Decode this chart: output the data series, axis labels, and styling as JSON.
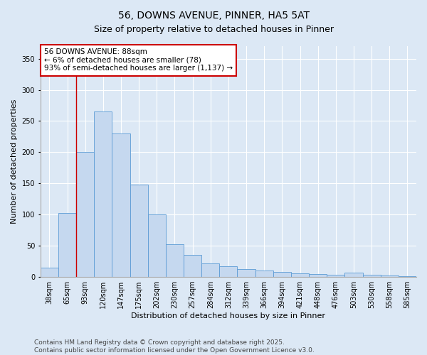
{
  "title": "56, DOWNS AVENUE, PINNER, HA5 5AT",
  "subtitle": "Size of property relative to detached houses in Pinner",
  "xlabel": "Distribution of detached houses by size in Pinner",
  "ylabel": "Number of detached properties",
  "categories": [
    "38sqm",
    "65sqm",
    "93sqm",
    "120sqm",
    "147sqm",
    "175sqm",
    "202sqm",
    "230sqm",
    "257sqm",
    "284sqm",
    "312sqm",
    "339sqm",
    "366sqm",
    "394sqm",
    "421sqm",
    "448sqm",
    "476sqm",
    "503sqm",
    "530sqm",
    "558sqm",
    "585sqm"
  ],
  "values": [
    15,
    102,
    200,
    265,
    230,
    148,
    100,
    52,
    35,
    22,
    17,
    13,
    10,
    8,
    6,
    5,
    4,
    7,
    3,
    2,
    1
  ],
  "bar_color": "#c5d8ef",
  "bar_edge_color": "#5b9bd5",
  "vline_x": 1.5,
  "vline_color": "#cc0000",
  "annotation_text": "56 DOWNS AVENUE: 88sqm\n← 6% of detached houses are smaller (78)\n93% of semi-detached houses are larger (1,137) →",
  "annotation_box_color": "#ffffff",
  "annotation_box_edge_color": "#cc0000",
  "ylim": [
    0,
    370
  ],
  "yticks": [
    0,
    50,
    100,
    150,
    200,
    250,
    300,
    350
  ],
  "bg_color": "#dce8f5",
  "plot_bg_color": "#dce8f5",
  "grid_color": "#ffffff",
  "footer": "Contains HM Land Registry data © Crown copyright and database right 2025.\nContains public sector information licensed under the Open Government Licence v3.0.",
  "title_fontsize": 10,
  "xlabel_fontsize": 8,
  "ylabel_fontsize": 8,
  "tick_fontsize": 7,
  "footer_fontsize": 6.5,
  "annotation_fontsize": 7.5
}
